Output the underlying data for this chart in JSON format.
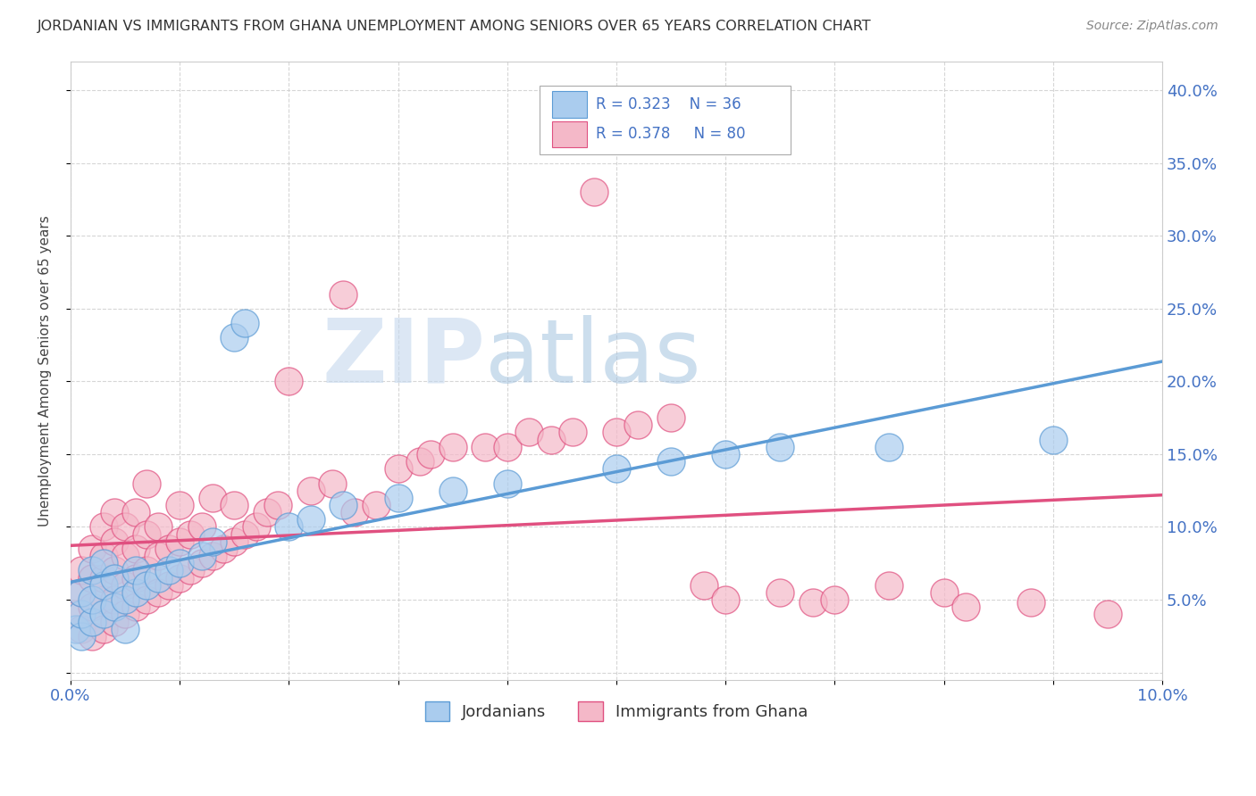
{
  "title": "JORDANIAN VS IMMIGRANTS FROM GHANA UNEMPLOYMENT AMONG SENIORS OVER 65 YEARS CORRELATION CHART",
  "source": "Source: ZipAtlas.com",
  "ylabel": "Unemployment Among Seniors over 65 years",
  "xlim": [
    0.0,
    0.1
  ],
  "ylim": [
    -0.005,
    0.42
  ],
  "color_jordan": "#aaccee",
  "color_ghana": "#f4b8c8",
  "line_color_jordan": "#5b9bd5",
  "line_color_ghana": "#e05080",
  "R_jordan": 0.323,
  "N_jordan": 36,
  "R_ghana": 0.378,
  "N_ghana": 80,
  "legend_label_jordan": "Jordanians",
  "legend_label_ghana": "Immigrants from Ghana",
  "watermark_zip": "ZIP",
  "watermark_atlas": "atlas",
  "background_color": "#ffffff",
  "jordan_x": [
    0.0005,
    0.001,
    0.001,
    0.001,
    0.002,
    0.002,
    0.002,
    0.003,
    0.003,
    0.003,
    0.004,
    0.004,
    0.005,
    0.005,
    0.006,
    0.006,
    0.007,
    0.008,
    0.009,
    0.01,
    0.012,
    0.013,
    0.015,
    0.016,
    0.02,
    0.022,
    0.025,
    0.03,
    0.035,
    0.04,
    0.05,
    0.055,
    0.06,
    0.065,
    0.075,
    0.09
  ],
  "jordan_y": [
    0.03,
    0.025,
    0.04,
    0.055,
    0.035,
    0.05,
    0.07,
    0.04,
    0.06,
    0.075,
    0.045,
    0.065,
    0.05,
    0.03,
    0.055,
    0.07,
    0.06,
    0.065,
    0.07,
    0.075,
    0.08,
    0.09,
    0.23,
    0.24,
    0.1,
    0.105,
    0.115,
    0.12,
    0.125,
    0.13,
    0.14,
    0.145,
    0.15,
    0.155,
    0.155,
    0.16
  ],
  "ghana_x": [
    0.0005,
    0.001,
    0.001,
    0.001,
    0.002,
    0.002,
    0.002,
    0.002,
    0.003,
    0.003,
    0.003,
    0.003,
    0.003,
    0.004,
    0.004,
    0.004,
    0.004,
    0.004,
    0.005,
    0.005,
    0.005,
    0.005,
    0.006,
    0.006,
    0.006,
    0.006,
    0.007,
    0.007,
    0.007,
    0.007,
    0.008,
    0.008,
    0.008,
    0.009,
    0.009,
    0.01,
    0.01,
    0.01,
    0.011,
    0.011,
    0.012,
    0.012,
    0.013,
    0.013,
    0.014,
    0.015,
    0.015,
    0.016,
    0.017,
    0.018,
    0.019,
    0.02,
    0.022,
    0.024,
    0.025,
    0.026,
    0.028,
    0.03,
    0.032,
    0.033,
    0.035,
    0.038,
    0.04,
    0.042,
    0.044,
    0.046,
    0.048,
    0.05,
    0.052,
    0.055,
    0.058,
    0.06,
    0.065,
    0.068,
    0.07,
    0.075,
    0.08,
    0.082,
    0.088,
    0.095
  ],
  "ghana_y": [
    0.04,
    0.03,
    0.055,
    0.07,
    0.025,
    0.045,
    0.065,
    0.085,
    0.03,
    0.05,
    0.065,
    0.08,
    0.1,
    0.035,
    0.05,
    0.07,
    0.09,
    0.11,
    0.04,
    0.06,
    0.08,
    0.1,
    0.045,
    0.065,
    0.085,
    0.11,
    0.05,
    0.07,
    0.095,
    0.13,
    0.055,
    0.08,
    0.1,
    0.06,
    0.085,
    0.065,
    0.09,
    0.115,
    0.07,
    0.095,
    0.075,
    0.1,
    0.08,
    0.12,
    0.085,
    0.09,
    0.115,
    0.095,
    0.1,
    0.11,
    0.115,
    0.2,
    0.125,
    0.13,
    0.26,
    0.11,
    0.115,
    0.14,
    0.145,
    0.15,
    0.155,
    0.155,
    0.155,
    0.165,
    0.16,
    0.165,
    0.33,
    0.165,
    0.17,
    0.175,
    0.06,
    0.05,
    0.055,
    0.048,
    0.05,
    0.06,
    0.055,
    0.045,
    0.048,
    0.04
  ]
}
